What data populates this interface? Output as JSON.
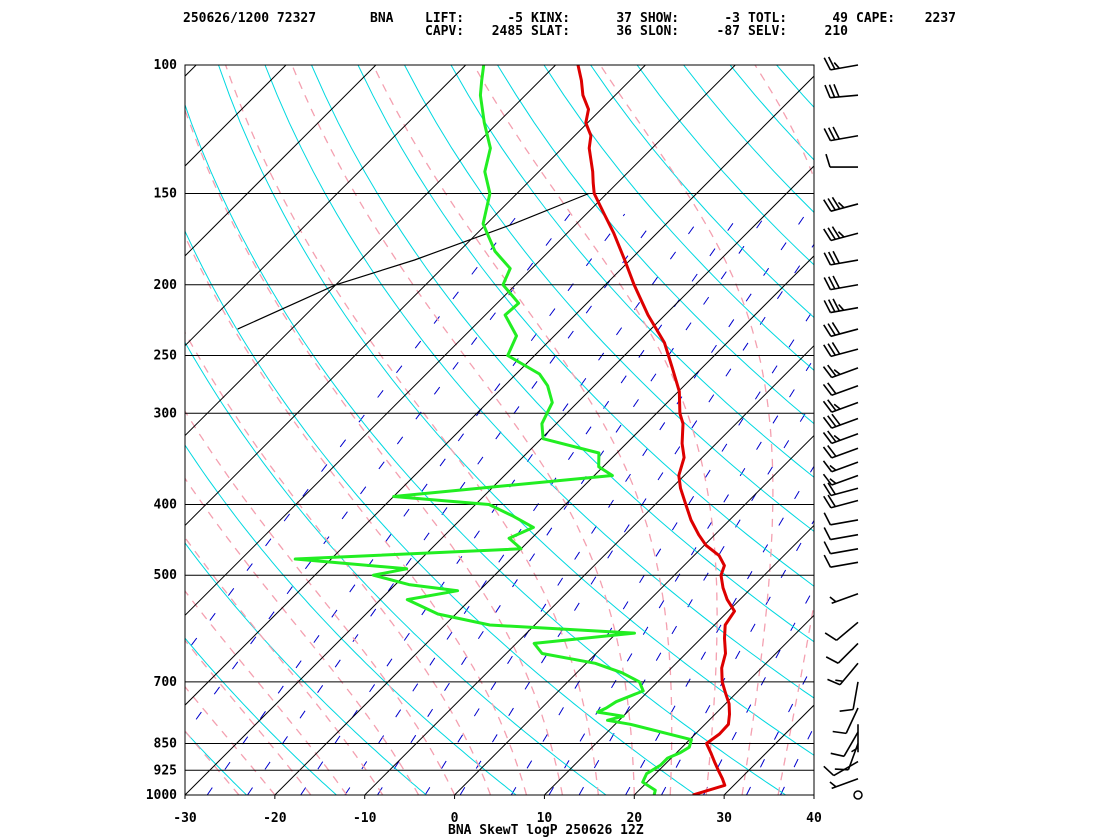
{
  "header": {
    "date_station": "250626/1200 72327",
    "station_id": "BNA",
    "indices": [
      {
        "label": "LIFT:",
        "value": "-5"
      },
      {
        "label": "KINX:",
        "value": "37"
      },
      {
        "label": "SHOW:",
        "value": "-3"
      },
      {
        "label": "TOTL:",
        "value": "49"
      },
      {
        "label": "CAPE:",
        "value": "2237"
      },
      {
        "label": "CAPV:",
        "value": "2485"
      },
      {
        "label": "SLAT:",
        "value": "36"
      },
      {
        "label": "SLON:",
        "value": "-87"
      },
      {
        "label": "SELV:",
        "value": "210"
      }
    ]
  },
  "footer": {
    "caption": "BNA SkewT logP 250626 12Z"
  },
  "colors": {
    "temperature": "#dd0000",
    "dewpoint": "#22ee22",
    "isobar": "#000000",
    "isotherm": "#000000",
    "dry_adiabat": "#00d8e0",
    "moist_adiabat": "#f4a0b0",
    "mixing_ratio": "#0000cc",
    "parcel": "#000000",
    "wind_barb": "#000000"
  },
  "chart_data": {
    "type": "skewt",
    "xlabel": "",
    "ylabel": "",
    "xlim": [
      -30,
      40
    ],
    "ylim": [
      1000,
      100
    ],
    "y_scale": "log",
    "pressure_ticks": [
      100,
      150,
      200,
      250,
      300,
      400,
      500,
      700,
      850,
      925,
      1000
    ],
    "pressure_tick_labels": [
      "100",
      "150",
      "200",
      "250",
      "300",
      "400",
      "500",
      "700",
      "850",
      "925",
      "1000"
    ],
    "temperature_ticks": [
      -30,
      -20,
      -10,
      0,
      10,
      20,
      30,
      40
    ],
    "temperature_tick_labels": [
      "-30",
      "-20",
      "-10",
      "0",
      "10",
      "20",
      "30",
      "40"
    ],
    "series": [
      {
        "id": "temperature",
        "points": [
          [
            1000,
            26.5
          ],
          [
            970,
            29.0
          ],
          [
            950,
            28.0
          ],
          [
            925,
            26.6
          ],
          [
            900,
            25.2
          ],
          [
            875,
            23.8
          ],
          [
            850,
            22.3
          ],
          [
            825,
            22.7
          ],
          [
            800,
            22.6
          ],
          [
            775,
            21.6
          ],
          [
            750,
            20.4
          ],
          [
            725,
            18.8
          ],
          [
            700,
            17.2
          ],
          [
            670,
            15.6
          ],
          [
            640,
            14.4
          ],
          [
            610,
            12.6
          ],
          [
            585,
            11.2
          ],
          [
            560,
            10.7
          ],
          [
            540,
            8.6
          ],
          [
            520,
            6.8
          ],
          [
            500,
            5.2
          ],
          [
            485,
            4.5
          ],
          [
            470,
            2.8
          ],
          [
            455,
            0.2
          ],
          [
            440,
            -1.8
          ],
          [
            420,
            -4.3
          ],
          [
            400,
            -6.6
          ],
          [
            380,
            -9.0
          ],
          [
            365,
            -10.6
          ],
          [
            345,
            -12.0
          ],
          [
            330,
            -13.8
          ],
          [
            310,
            -15.9
          ],
          [
            300,
            -17.4
          ],
          [
            280,
            -19.9
          ],
          [
            260,
            -23.3
          ],
          [
            240,
            -27.0
          ],
          [
            220,
            -31.9
          ],
          [
            200,
            -36.8
          ],
          [
            185,
            -40.6
          ],
          [
            170,
            -44.8
          ],
          [
            160,
            -48.0
          ],
          [
            150,
            -51.4
          ],
          [
            145,
            -52.7
          ],
          [
            140,
            -54.0
          ],
          [
            130,
            -57.0
          ],
          [
            125,
            -58.2
          ],
          [
            120,
            -60.2
          ],
          [
            115,
            -61.4
          ],
          [
            110,
            -63.6
          ],
          [
            105,
            -65.4
          ],
          [
            100,
            -67.5
          ]
        ]
      },
      {
        "id": "dewpoint",
        "points": [
          [
            1000,
            22.2
          ],
          [
            985,
            21.8
          ],
          [
            960,
            19.5
          ],
          [
            935,
            19.0
          ],
          [
            910,
            19.6
          ],
          [
            890,
            19.6
          ],
          [
            875,
            20.4
          ],
          [
            860,
            20.8
          ],
          [
            840,
            20.2
          ],
          [
            800,
            11.7
          ],
          [
            790,
            8.7
          ],
          [
            780,
            10.0
          ],
          [
            770,
            6.7
          ],
          [
            760,
            7.2
          ],
          [
            745,
            7.6
          ],
          [
            720,
            9.4
          ],
          [
            700,
            8.0
          ],
          [
            680,
            5.0
          ],
          [
            660,
            1.0
          ],
          [
            640,
            -6.0
          ],
          [
            620,
            -8.0
          ],
          [
            600,
            2.0
          ],
          [
            585,
            -15.0
          ],
          [
            565,
            -22.0
          ],
          [
            540,
            -27.0
          ],
          [
            525,
            -22.4
          ],
          [
            515,
            -28.5
          ],
          [
            500,
            -33.5
          ],
          [
            490,
            -30.5
          ],
          [
            475,
            -44.0
          ],
          [
            460,
            -20.0
          ],
          [
            445,
            -22.5
          ],
          [
            430,
            -21.0
          ],
          [
            415,
            -24.5
          ],
          [
            400,
            -28.5
          ],
          [
            390,
            -40.0
          ],
          [
            365,
            -18.0
          ],
          [
            355,
            -20.5
          ],
          [
            340,
            -22.0
          ],
          [
            325,
            -29.8
          ],
          [
            310,
            -31.6
          ],
          [
            290,
            -32.8
          ],
          [
            275,
            -35.2
          ],
          [
            265,
            -37.4
          ],
          [
            250,
            -43.0
          ],
          [
            235,
            -44.2
          ],
          [
            220,
            -47.8
          ],
          [
            212,
            -47.6
          ],
          [
            200,
            -51.4
          ],
          [
            190,
            -52.4
          ],
          [
            180,
            -56.0
          ],
          [
            165,
            -60.4
          ],
          [
            150,
            -63.0
          ],
          [
            140,
            -66.0
          ],
          [
            130,
            -68.0
          ],
          [
            120,
            -71.5
          ],
          [
            110,
            -75.0
          ],
          [
            105,
            -76.5
          ],
          [
            100,
            -78.0
          ]
        ]
      }
    ],
    "parcel_path": [
      [
        150,
        -52
      ],
      [
        165,
        -57
      ],
      [
        185,
        -64
      ],
      [
        200,
        -70
      ],
      [
        230,
        -76
      ]
    ],
    "wind_barbs": [
      {
        "p": 100,
        "speed_kt": 25,
        "dir_deg": 260
      },
      {
        "p": 110,
        "speed_kt": 30,
        "dir_deg": 265
      },
      {
        "p": 125,
        "speed_kt": 30,
        "dir_deg": 260
      },
      {
        "p": 138,
        "speed_kt": 10,
        "dir_deg": 270
      },
      {
        "p": 155,
        "speed_kt": 35,
        "dir_deg": 255
      },
      {
        "p": 170,
        "speed_kt": 35,
        "dir_deg": 255
      },
      {
        "p": 185,
        "speed_kt": 30,
        "dir_deg": 260
      },
      {
        "p": 200,
        "speed_kt": 30,
        "dir_deg": 260
      },
      {
        "p": 215,
        "speed_kt": 35,
        "dir_deg": 260
      },
      {
        "p": 230,
        "speed_kt": 30,
        "dir_deg": 255
      },
      {
        "p": 245,
        "speed_kt": 30,
        "dir_deg": 255
      },
      {
        "p": 260,
        "speed_kt": 25,
        "dir_deg": 250
      },
      {
        "p": 275,
        "speed_kt": 20,
        "dir_deg": 250
      },
      {
        "p": 290,
        "speed_kt": 25,
        "dir_deg": 250
      },
      {
        "p": 305,
        "speed_kt": 30,
        "dir_deg": 250
      },
      {
        "p": 320,
        "speed_kt": 25,
        "dir_deg": 250
      },
      {
        "p": 335,
        "speed_kt": 20,
        "dir_deg": 250
      },
      {
        "p": 350,
        "speed_kt": 15,
        "dir_deg": 250
      },
      {
        "p": 365,
        "speed_kt": 15,
        "dir_deg": 250
      },
      {
        "p": 380,
        "speed_kt": 20,
        "dir_deg": 255
      },
      {
        "p": 395,
        "speed_kt": 20,
        "dir_deg": 255
      },
      {
        "p": 420,
        "speed_kt": 10,
        "dir_deg": 260
      },
      {
        "p": 440,
        "speed_kt": 10,
        "dir_deg": 260
      },
      {
        "p": 460,
        "speed_kt": 10,
        "dir_deg": 260
      },
      {
        "p": 480,
        "speed_kt": 10,
        "dir_deg": 260
      },
      {
        "p": 530,
        "speed_kt": 5,
        "dir_deg": 250
      },
      {
        "p": 580,
        "speed_kt": 10,
        "dir_deg": 230
      },
      {
        "p": 620,
        "speed_kt": 10,
        "dir_deg": 225
      },
      {
        "p": 660,
        "speed_kt": 15,
        "dir_deg": 220
      },
      {
        "p": 700,
        "speed_kt": 10,
        "dir_deg": 190
      },
      {
        "p": 760,
        "speed_kt": 10,
        "dir_deg": 205
      },
      {
        "p": 800,
        "speed_kt": 5,
        "dir_deg": 180
      },
      {
        "p": 820,
        "speed_kt": 10,
        "dir_deg": 210
      },
      {
        "p": 850,
        "speed_kt": 10,
        "dir_deg": 200
      },
      {
        "p": 900,
        "speed_kt": 10,
        "dir_deg": 240
      },
      {
        "p": 950,
        "speed_kt": 5,
        "dir_deg": 250
      },
      {
        "p": 1000,
        "speed_kt": 0,
        "dir_deg": 0
      }
    ]
  }
}
